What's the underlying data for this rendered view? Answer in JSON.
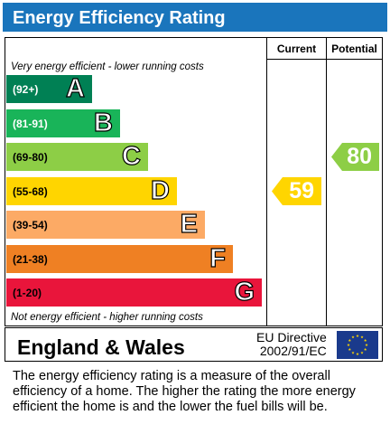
{
  "title": "Energy Efficiency Rating",
  "columns": {
    "current": "Current",
    "potential": "Potential"
  },
  "top_caption": "Very energy efficient - lower running costs",
  "bottom_caption": "Not energy efficient - higher running costs",
  "bands": [
    {
      "range": "(92+)",
      "letter": "A",
      "color": "#008054",
      "text_color": "#ffffff"
    },
    {
      "range": "(81-91)",
      "letter": "B",
      "color": "#19b459",
      "text_color": "#ffffff"
    },
    {
      "range": "(69-80)",
      "letter": "C",
      "color": "#8dce46",
      "text_color": "#000000"
    },
    {
      "range": "(55-68)",
      "letter": "D",
      "color": "#ffd500",
      "text_color": "#000000"
    },
    {
      "range": "(39-54)",
      "letter": "E",
      "color": "#fcaa65",
      "text_color": "#000000"
    },
    {
      "range": "(21-38)",
      "letter": "F",
      "color": "#ef8023",
      "text_color": "#000000"
    },
    {
      "range": "(1-20)",
      "letter": "G",
      "color": "#e9153b",
      "text_color": "#000000"
    }
  ],
  "current": {
    "value": "59",
    "band": "D",
    "color": "#ffd500"
  },
  "potential": {
    "value": "80",
    "band": "C",
    "color": "#8dce46"
  },
  "footer": {
    "region": "England & Wales",
    "directive_line1": "EU Directive",
    "directive_line2": "2002/91/EC",
    "flag_color": "#1a3a8c",
    "star_color": "#ffd500"
  },
  "explanation": "The energy efficiency rating is a measure of the overall efficiency of a home.  The higher the rating the more energy efficient the home is and the lower the fuel bills will be."
}
